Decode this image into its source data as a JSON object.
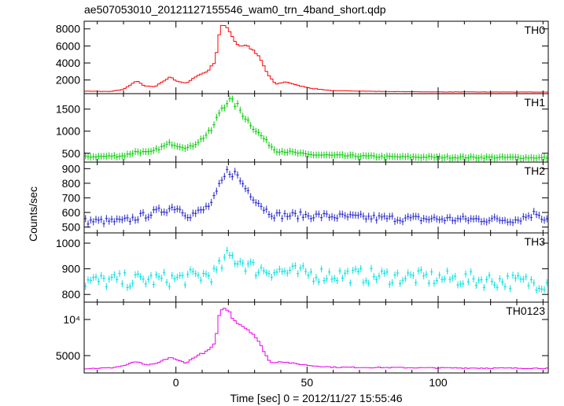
{
  "chart_data": {
    "type": "line",
    "title": "ae507053010_20121127155546_wam0_trn_4band_short.qdp",
    "xlabel": "Time [sec] 0 = 2012/11/27 15:55:46",
    "ylabel": "Counts/sec",
    "xlim": [
      -35,
      142
    ],
    "x_ticks": [
      0,
      50,
      100
    ],
    "x_minor_step": 10,
    "grid": false,
    "panels": [
      {
        "name": "TH0",
        "color": "#ff0000",
        "ylim": [
          400,
          8900
        ],
        "y_ticks": [
          2000,
          4000,
          6000,
          8000
        ],
        "y_tick_labels": [
          "2000",
          "4000",
          "6000",
          "8000"
        ],
        "error_bars": false,
        "keypoints": [
          [
            -35,
            700
          ],
          [
            -25,
            650
          ],
          [
            -20,
            900
          ],
          [
            -15,
            1900
          ],
          [
            -12,
            1300
          ],
          [
            -8,
            1200
          ],
          [
            -2,
            2400
          ],
          [
            0,
            1900
          ],
          [
            4,
            1600
          ],
          [
            8,
            2500
          ],
          [
            12,
            3000
          ],
          [
            15,
            4200
          ],
          [
            17,
            8400
          ],
          [
            20,
            8100
          ],
          [
            22,
            6800
          ],
          [
            24,
            6000
          ],
          [
            27,
            6100
          ],
          [
            30,
            5300
          ],
          [
            32,
            4600
          ],
          [
            35,
            2700
          ],
          [
            38,
            1500
          ],
          [
            42,
            1800
          ],
          [
            46,
            1400
          ],
          [
            52,
            1000
          ],
          [
            60,
            750
          ],
          [
            80,
            650
          ],
          [
            100,
            600
          ],
          [
            140,
            580
          ]
        ],
        "noise": 0.02
      },
      {
        "name": "TH1",
        "color": "#00cc00",
        "ylim": [
          300,
          1850
        ],
        "y_ticks": [
          500,
          1000,
          1500
        ],
        "y_tick_labels": [
          "500",
          "1000",
          "1500"
        ],
        "error_bars": true,
        "keypoints": [
          [
            -35,
            420
          ],
          [
            -20,
            440
          ],
          [
            -15,
            540
          ],
          [
            -10,
            510
          ],
          [
            -2,
            730
          ],
          [
            0,
            690
          ],
          [
            5,
            620
          ],
          [
            10,
            830
          ],
          [
            14,
            1050
          ],
          [
            17,
            1500
          ],
          [
            20,
            1700
          ],
          [
            23,
            1600
          ],
          [
            26,
            1350
          ],
          [
            30,
            1050
          ],
          [
            34,
            800
          ],
          [
            38,
            560
          ],
          [
            42,
            540
          ],
          [
            50,
            470
          ],
          [
            60,
            450
          ],
          [
            80,
            420
          ],
          [
            100,
            410
          ],
          [
            140,
            400
          ]
        ],
        "noise": 0.05
      },
      {
        "name": "TH2",
        "color": "#2222cc",
        "ylim": [
          460,
          945
        ],
        "y_ticks": [
          500,
          600,
          700,
          800,
          900
        ],
        "y_tick_labels": [
          "500",
          "600",
          "700",
          "800",
          "900"
        ],
        "error_bars": true,
        "keypoints": [
          [
            -35,
            540
          ],
          [
            -20,
            540
          ],
          [
            -10,
            590
          ],
          [
            0,
            640
          ],
          [
            5,
            580
          ],
          [
            10,
            610
          ],
          [
            14,
            670
          ],
          [
            17,
            790
          ],
          [
            20,
            890
          ],
          [
            23,
            860
          ],
          [
            26,
            780
          ],
          [
            30,
            700
          ],
          [
            34,
            620
          ],
          [
            38,
            580
          ],
          [
            50,
            580
          ],
          [
            80,
            560
          ],
          [
            100,
            555
          ],
          [
            130,
            550
          ],
          [
            138,
            600
          ],
          [
            140,
            560
          ]
        ],
        "noise": 0.04
      },
      {
        "name": "TH3",
        "color": "#00e0e0",
        "ylim": [
          770,
          1040
        ],
        "y_ticks": [
          800,
          900,
          1000
        ],
        "y_tick_labels": [
          "800",
          "900",
          "1000"
        ],
        "error_bars": true,
        "keypoints": [
          [
            -35,
            850
          ],
          [
            0,
            860
          ],
          [
            15,
            880
          ],
          [
            20,
            950
          ],
          [
            25,
            930
          ],
          [
            30,
            900
          ],
          [
            50,
            880
          ],
          [
            80,
            870
          ],
          [
            110,
            860
          ],
          [
            140,
            845
          ]
        ],
        "noise": 0.035
      },
      {
        "name": "TH0123",
        "color": "#ee00ee",
        "ylim": [
          2600,
          12400
        ],
        "y_ticks": [
          5000,
          10000
        ],
        "y_tick_labels": [
          "5000",
          "10⁴"
        ],
        "error_bars": false,
        "keypoints": [
          [
            -35,
            3200
          ],
          [
            -25,
            3300
          ],
          [
            -20,
            3600
          ],
          [
            -15,
            4200
          ],
          [
            -12,
            3700
          ],
          [
            -8,
            3800
          ],
          [
            -2,
            4800
          ],
          [
            0,
            4400
          ],
          [
            4,
            4000
          ],
          [
            8,
            5000
          ],
          [
            12,
            5600
          ],
          [
            15,
            6700
          ],
          [
            17,
            11600
          ],
          [
            20,
            11300
          ],
          [
            22,
            10000
          ],
          [
            25,
            9200
          ],
          [
            28,
            8500
          ],
          [
            30,
            7800
          ],
          [
            33,
            6000
          ],
          [
            36,
            4000
          ],
          [
            40,
            4200
          ],
          [
            45,
            3900
          ],
          [
            52,
            3600
          ],
          [
            60,
            3400
          ],
          [
            100,
            3300
          ],
          [
            140,
            3250
          ]
        ],
        "noise": 0.02
      }
    ]
  }
}
